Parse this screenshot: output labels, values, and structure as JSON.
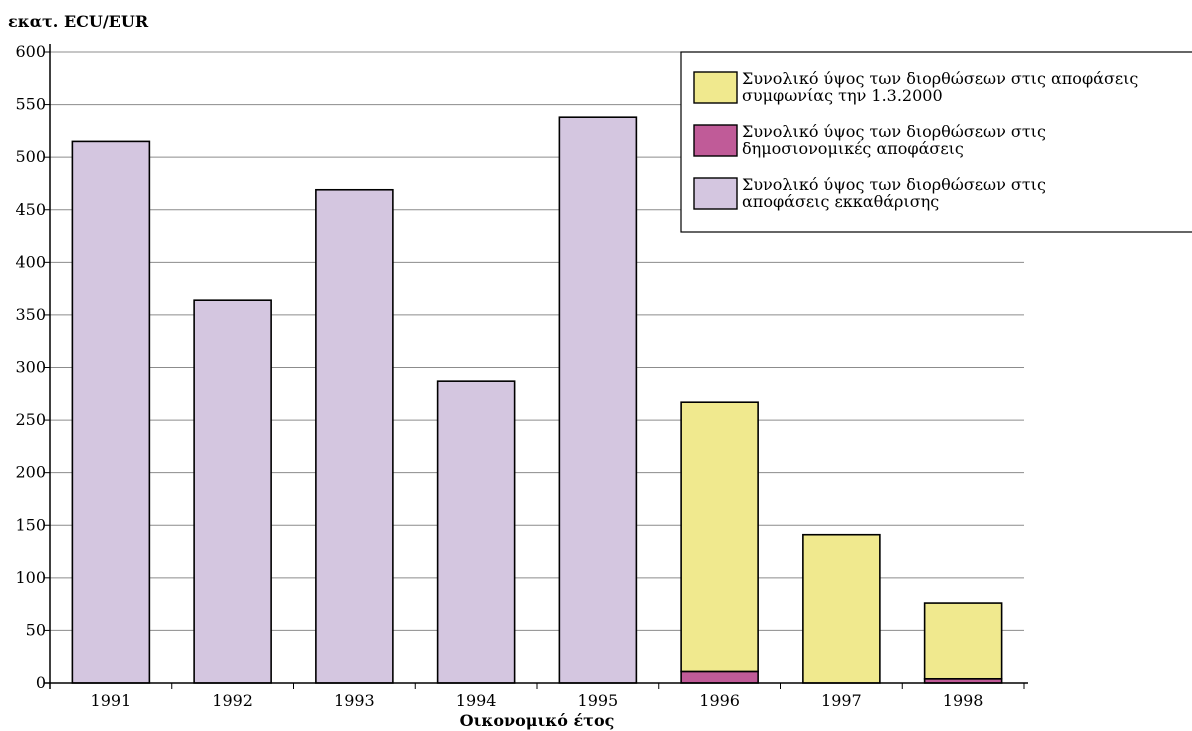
{
  "chart_data": {
    "type": "bar",
    "stacked": true,
    "ylabel": "εκατ. ECU/EUR",
    "xlabel": "Οικονομικό έτος",
    "categories": [
      "1991",
      "1992",
      "1993",
      "1994",
      "1995",
      "1996",
      "1997",
      "1998"
    ],
    "ylim": [
      0,
      600
    ],
    "yticks": [
      0,
      50,
      100,
      150,
      200,
      250,
      300,
      350,
      400,
      450,
      500,
      550,
      600
    ],
    "grid": true,
    "legend_position": "top-right",
    "series": [
      {
        "name": "Συνολικό ύψος των διορθώσεων στις αποφάσεις εκκαθάρισης",
        "legend_lines": [
          "Συνολικό ύψος των διορθώσεων στις",
          "αποφάσεις εκκαθάρισης"
        ],
        "color": "#d4c6e0",
        "values": [
          515,
          364,
          469,
          287,
          538,
          0,
          0,
          0
        ]
      },
      {
        "name": "Συνολικό ύψος των διορθώσεων στις δημοσιονομικές αποφάσεις",
        "legend_lines": [
          "Συνολικό ύψος των διορθώσεων στις",
          "δημοσιονομικές αποφάσεις"
        ],
        "color": "#c05b98",
        "values": [
          0,
          0,
          0,
          0,
          0,
          11,
          0,
          4
        ]
      },
      {
        "name": "Συνολικό ύψος των διορθώσεων στις αποφάσεις συμφωνίας την 1.3.2000",
        "legend_lines": [
          "Συνολικό ύψος των διορθώσεων στις αποφάσεις",
          "συμφωνίας την 1.3.2000"
        ],
        "color": "#f0e98e",
        "values": [
          0,
          0,
          0,
          0,
          0,
          256,
          141,
          72
        ]
      }
    ],
    "legend_order": [
      2,
      1,
      0
    ]
  }
}
